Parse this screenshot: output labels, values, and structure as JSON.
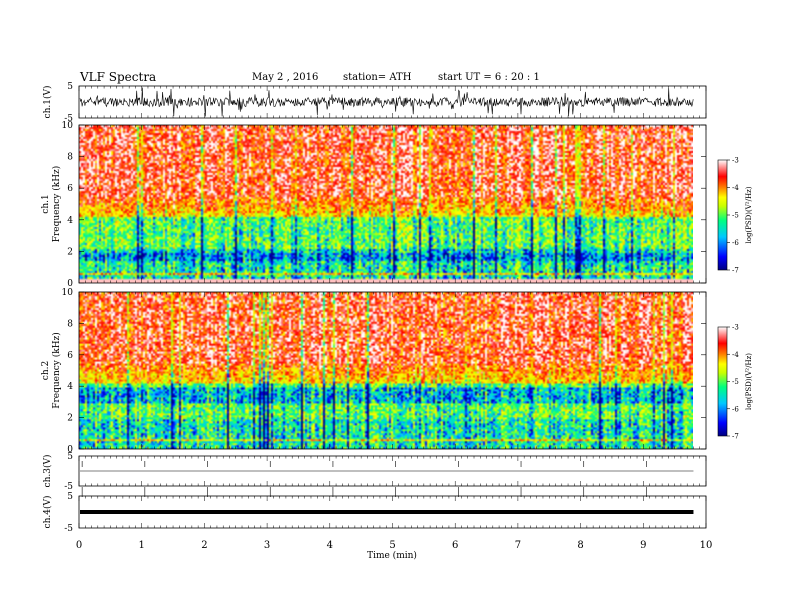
{
  "header": {
    "title": "VLF  Spectra",
    "date": "May 2  , 2016",
    "station": "station= ATH",
    "start": "start  UT  =   6  : 20 : 1"
  },
  "chart_data": [
    {
      "type": "line",
      "name": "ch1-waveform",
      "ylabel": "ch.1(V)",
      "yticks": [
        "5",
        "-5"
      ],
      "ylim": [
        -5,
        5
      ]
    },
    {
      "type": "heatmap",
      "name": "ch1-spectrogram",
      "ylabel_top": "ch.1",
      "ylabel": "Frequency  (kHz)",
      "ylim": [
        0,
        10
      ],
      "yticks": [
        "0",
        "2",
        "4",
        "6",
        "8",
        "10"
      ],
      "colorbar": {
        "label": "log(PSD)(V²/Hz)",
        "ticks": [
          "-3",
          "-4",
          "-5",
          "-6",
          "-7"
        ],
        "range": [
          -7,
          -3
        ]
      }
    },
    {
      "type": "heatmap",
      "name": "ch2-spectrogram",
      "ylabel_top": "ch.2",
      "ylabel": "Frequency  (kHz)",
      "ylim": [
        0,
        10
      ],
      "yticks": [
        "0",
        "2",
        "4",
        "6",
        "8",
        "10"
      ],
      "colorbar": {
        "label": "log(PSD)(V²/Hz)",
        "ticks": [
          "-3",
          "-4",
          "-5",
          "-6",
          "-7"
        ],
        "range": [
          -7,
          -3
        ]
      }
    },
    {
      "type": "line",
      "name": "ch3-waveform",
      "ylabel": "ch.3(V)",
      "yticks": [
        "5",
        "-5"
      ],
      "ylim": [
        -5,
        5
      ]
    },
    {
      "type": "line",
      "name": "ch4-waveform",
      "ylabel": "ch.4(V)",
      "yticks": [
        "5",
        "-5"
      ],
      "ylim": [
        -5,
        5
      ]
    }
  ],
  "xaxis": {
    "label": "Time  (min)",
    "ticks": [
      "0",
      "1",
      "2",
      "3",
      "4",
      "5",
      "6",
      "7",
      "8",
      "9",
      "10"
    ],
    "xlim": [
      0,
      10
    ],
    "data_end": 9.8
  },
  "colors": {
    "scale": [
      "#000080",
      "#0000ff",
      "#00c8ff",
      "#00ff80",
      "#c8ff00",
      "#ffff00",
      "#ff8000",
      "#ff0000",
      "#ffffff"
    ]
  }
}
